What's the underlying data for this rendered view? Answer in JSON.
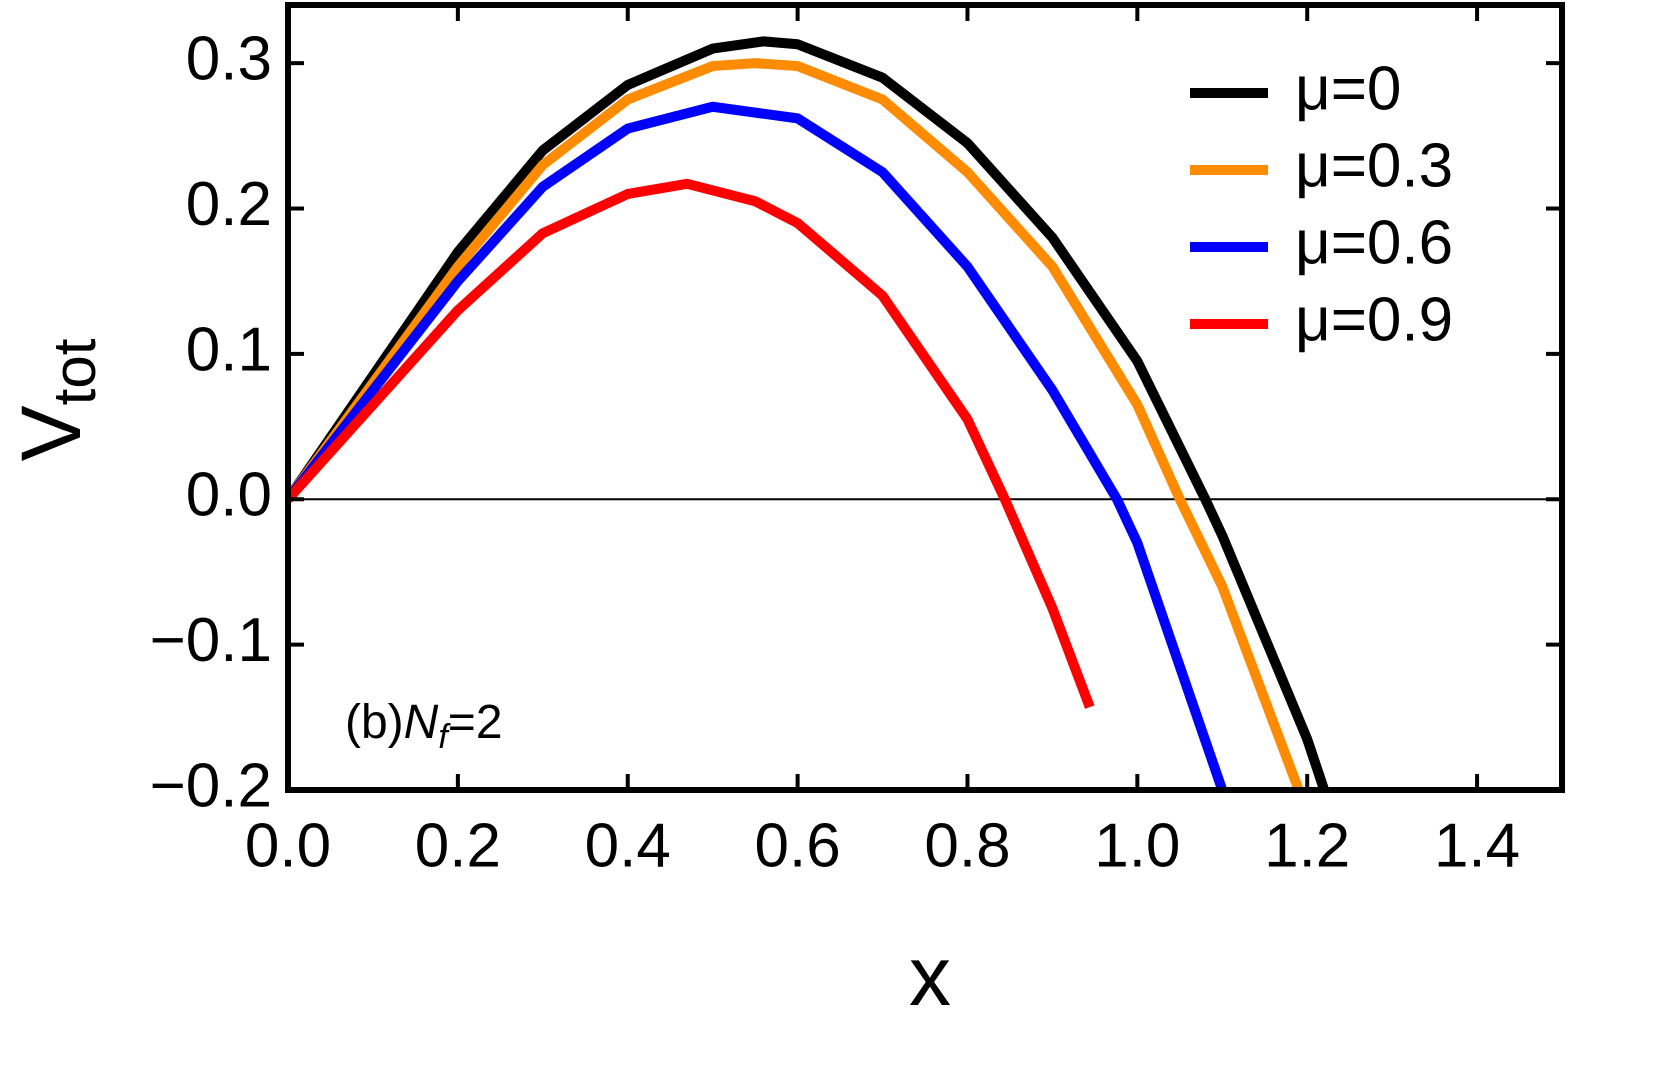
{
  "chart_data": {
    "type": "line",
    "xlabel": "x",
    "ylabel": {
      "main": "V",
      "sub": "tot"
    },
    "annotation": {
      "prefix": "(b)",
      "main": "N",
      "sub": "f",
      "suffix": "=2"
    },
    "xlim": [
      0,
      1.5
    ],
    "ylim": [
      -0.2,
      0.34
    ],
    "xticks": [
      {
        "value": 0,
        "label": "0.0"
      },
      0.2,
      0.4,
      0.6,
      0.8,
      {
        "value": 1,
        "label": "1.0"
      },
      1.2,
      1.4
    ],
    "yticks": [
      {
        "value": -0.2,
        "label": "−0.2"
      },
      {
        "value": -0.1,
        "label": "−0.1"
      },
      {
        "value": 0,
        "label": "0.0"
      },
      0.1,
      0.2,
      0.3
    ],
    "zero_line": true,
    "legend": "upper right",
    "series": [
      {
        "name": "μ=0",
        "color": "#000000",
        "x": [
          0,
          0.1,
          0.2,
          0.3,
          0.4,
          0.5,
          0.56,
          0.6,
          0.7,
          0.8,
          0.9,
          1.0,
          1.08,
          1.1,
          1.2,
          1.22
        ],
        "values": [
          0,
          0.085,
          0.17,
          0.24,
          0.285,
          0.31,
          0.315,
          0.313,
          0.29,
          0.245,
          0.18,
          0.095,
          0,
          -0.025,
          -0.165,
          -0.2
        ]
      },
      {
        "name": "μ=0.3",
        "color": "#ff8c00",
        "x": [
          0,
          0.1,
          0.2,
          0.3,
          0.4,
          0.5,
          0.55,
          0.6,
          0.7,
          0.8,
          0.9,
          1.0,
          1.05,
          1.1,
          1.19
        ],
        "values": [
          0,
          0.08,
          0.16,
          0.23,
          0.275,
          0.298,
          0.3,
          0.298,
          0.275,
          0.225,
          0.16,
          0.065,
          0,
          -0.06,
          -0.2
        ]
      },
      {
        "name": "μ=0.6",
        "color": "#0000ff",
        "x": [
          0,
          0.1,
          0.2,
          0.3,
          0.4,
          0.5,
          0.6,
          0.7,
          0.8,
          0.9,
          0.976,
          1.0,
          1.1
        ],
        "values": [
          0,
          0.075,
          0.15,
          0.215,
          0.255,
          0.27,
          0.262,
          0.225,
          0.16,
          0.075,
          0,
          -0.03,
          -0.2
        ]
      },
      {
        "name": "μ=0.9",
        "color": "#ff0000",
        "x": [
          0,
          0.1,
          0.2,
          0.3,
          0.4,
          0.47,
          0.55,
          0.6,
          0.7,
          0.8,
          0.844,
          0.9,
          0.944
        ],
        "values": [
          0,
          0.065,
          0.13,
          0.183,
          0.21,
          0.217,
          0.205,
          0.19,
          0.14,
          0.055,
          0,
          -0.075,
          -0.143
        ]
      }
    ]
  }
}
